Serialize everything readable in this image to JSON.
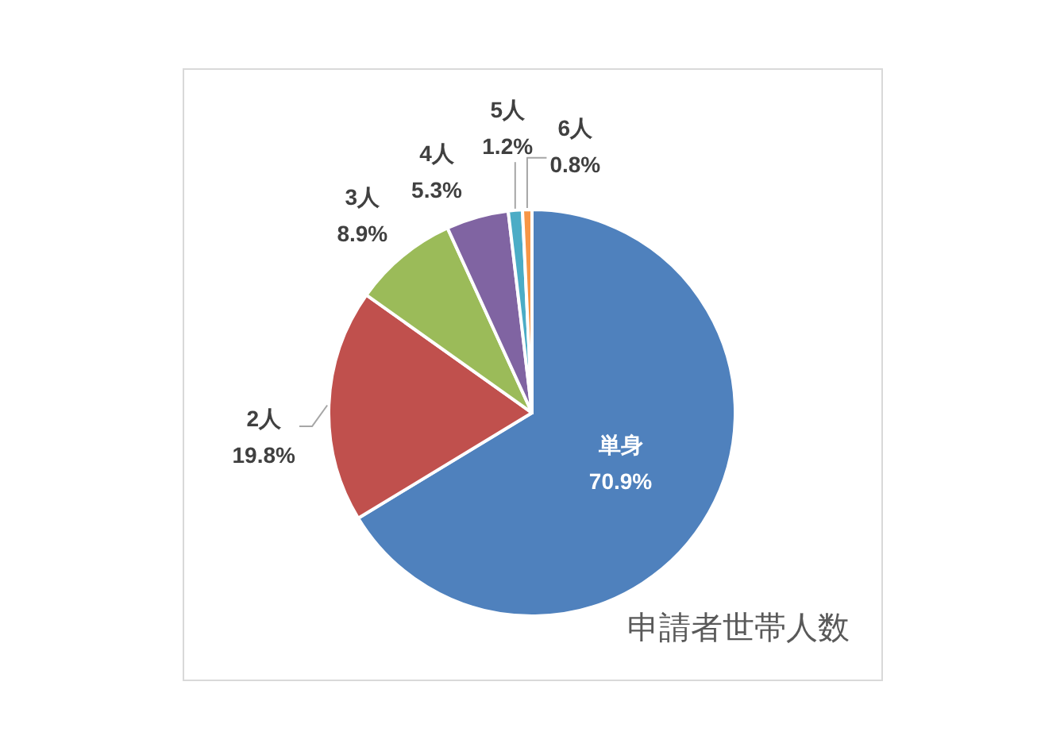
{
  "chart_data": {
    "type": "pie",
    "title": "申請者世帯人数",
    "categories": [
      "単身",
      "2人",
      "3人",
      "4人",
      "5人",
      "6人"
    ],
    "values": [
      70.9,
      19.8,
      8.9,
      5.3,
      1.2,
      0.8
    ],
    "colors": [
      "#4f81bd",
      "#c0504d",
      "#9bbb59",
      "#8064a2",
      "#4bacc6",
      "#f79646"
    ],
    "value_labels": [
      "70.9%",
      "19.8%",
      "8.9%",
      "5.3%",
      "1.2%",
      "0.8%"
    ]
  }
}
